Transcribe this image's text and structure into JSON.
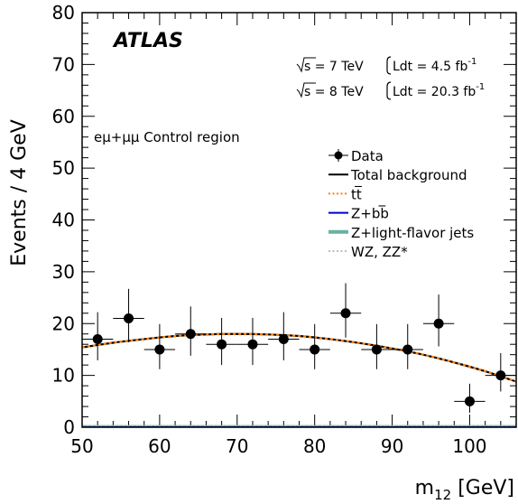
{
  "chart_data": {
    "type": "scatter",
    "experiment": "ATLAS",
    "lumi_lines": [
      {
        "energy": "s = 7 TeV",
        "lumi": "Ldt = 4.5 fb",
        "exp": "-1"
      },
      {
        "energy": "s = 8 TeV",
        "lumi": "Ldt = 20.3 fb",
        "exp": "-1"
      }
    ],
    "region": "eμ+μμ Control region",
    "xlabel_main": "m",
    "xlabel_sub": "12",
    "xlabel_unit": " [GeV]",
    "ylabel": "Events / 4 GeV",
    "xlim": [
      50,
      106
    ],
    "ylim": [
      0,
      80
    ],
    "x_ticks": [
      50,
      60,
      70,
      80,
      90,
      100
    ],
    "y_ticks": [
      0,
      10,
      20,
      30,
      40,
      50,
      60,
      70,
      80
    ],
    "x_minor_step": 2,
    "y_minor_step": 2,
    "legend": [
      {
        "label": "Data",
        "style": "data",
        "color": "#000000"
      },
      {
        "label": "Total background",
        "style": "solid",
        "color": "#000000"
      },
      {
        "label": "tt̅",
        "style": "dotted",
        "color": "#ff7f0e"
      },
      {
        "label": "Z+bb̅",
        "style": "solid",
        "color": "#0000cc"
      },
      {
        "label": "Z+light-flavor jets",
        "style": "thick",
        "color": "#66b2a0"
      },
      {
        "label": "WZ, ZZ*",
        "style": "dotted",
        "color": "#bbbbbb"
      }
    ],
    "data": {
      "name": "Data",
      "x": [
        52,
        56,
        60,
        64,
        68,
        72,
        76,
        80,
        84,
        88,
        92,
        96,
        100,
        104
      ],
      "y": [
        17,
        21,
        15,
        18,
        16,
        16,
        17,
        15,
        22,
        15,
        15,
        20,
        5,
        10
      ],
      "yerr_up": [
        5.2,
        5.7,
        4.9,
        5.3,
        5.1,
        5.1,
        5.2,
        4.9,
        5.8,
        4.9,
        4.9,
        5.6,
        3.4,
        4.3
      ],
      "yerr_down": [
        4.1,
        4.6,
        3.8,
        4.2,
        4.0,
        4.0,
        4.1,
        3.8,
        4.7,
        3.8,
        3.8,
        4.4,
        2.2,
        3.1
      ],
      "xerr": 2
    },
    "total_background": {
      "x": [
        50,
        54,
        58,
        62,
        66,
        70,
        74,
        78,
        82,
        86,
        90,
        94,
        98,
        102,
        106
      ],
      "y": [
        15.4,
        16.3,
        17.0,
        17.6,
        17.9,
        18.0,
        17.9,
        17.6,
        17.0,
        16.2,
        15.2,
        14.0,
        12.5,
        10.8,
        8.8
      ]
    },
    "ttbar": {
      "x": [
        50,
        54,
        58,
        62,
        66,
        70,
        74,
        78,
        82,
        86,
        90,
        94,
        98,
        102,
        106
      ],
      "y": [
        15.4,
        16.3,
        17.0,
        17.6,
        17.9,
        18.0,
        17.9,
        17.6,
        17.0,
        16.2,
        15.2,
        14.0,
        12.5,
        10.8,
        8.8
      ]
    },
    "z_bb": {
      "x": [
        50,
        106
      ],
      "y": [
        0.05,
        0.05
      ]
    },
    "z_light": {
      "x": [
        50,
        106
      ],
      "y": [
        0.15,
        0.15
      ]
    },
    "wz_zz": {
      "x": [
        50,
        106
      ],
      "y": [
        0.1,
        0.1
      ]
    },
    "colors": {
      "total": "#000000",
      "ttbar": "#ff7f0e",
      "zbb": "#0000cc",
      "zlight": "#66b2a0",
      "wzzz": "#bbbbbb"
    }
  }
}
